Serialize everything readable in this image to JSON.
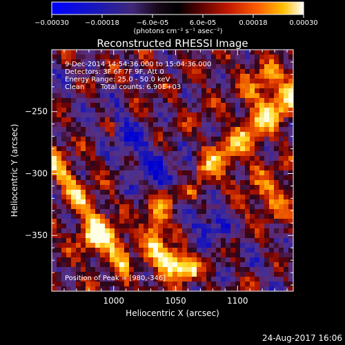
{
  "colorbar": {
    "ticks": [
      "-0.00030",
      "-0.00018",
      "-6.0e-05",
      "6.0e-05",
      "0.00018",
      "0.00030"
    ],
    "tick_values": [
      -0.0003,
      -0.00018,
      -6e-05,
      6e-05,
      0.00018,
      0.0003
    ],
    "range": [
      -0.0003,
      0.0003
    ],
    "units_label": "(photons cm⁻² s⁻¹ asec⁻²)"
  },
  "chart_data": {
    "type": "heatmap",
    "title": "Reconstructed RHESSI Image",
    "xlabel": "Heliocentric X (arcsec)",
    "ylabel": "Heliocentric Y (arcsec)",
    "xlim": [
      950,
      1145
    ],
    "ylim": [
      -395,
      -200
    ],
    "x_ticks": [
      1000,
      1050,
      1100
    ],
    "y_ticks": [
      -250,
      -300,
      -350
    ],
    "x_tick_labels": [
      "1000",
      "1050",
      "1100"
    ],
    "y_tick_labels": [
      "-250",
      "-300",
      "-350"
    ],
    "colormap": [
      "#0000ff",
      "#2020c0",
      "#503090",
      "#602070",
      "#000000",
      "#700000",
      "#c02000",
      "#ff6000",
      "#ffc000",
      "#ffffff"
    ],
    "annotations": {
      "time": "9-Dec-2014 14:54:36.000 to 15:04:36.000",
      "detectors": "Detectors: 3F 6F 7F 9F, Att 0",
      "energy": "Energy Range: 25.0 - 50.0 keV",
      "method": "Clean",
      "counts": "Total counts: 6.90E+03",
      "peak": "Position of Peak = [980,-346]"
    },
    "peak": [
      980,
      -346
    ]
  },
  "footer": {
    "timestamp": "24-Aug-2017 16:06"
  }
}
